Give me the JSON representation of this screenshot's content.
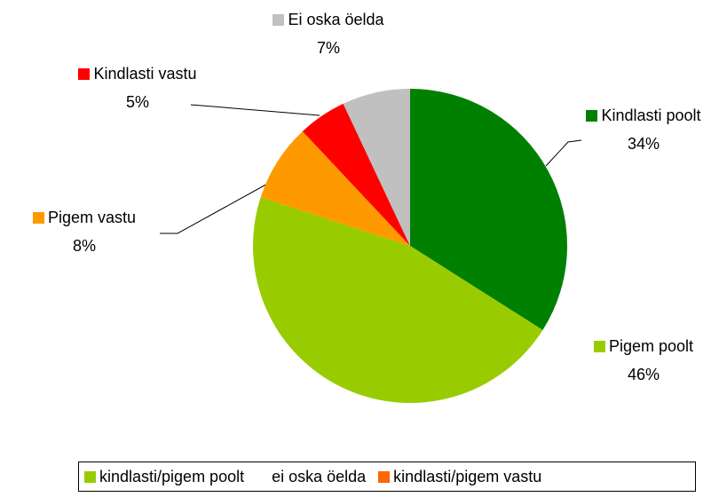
{
  "chart_data": {
    "type": "pie",
    "categories": [
      "Kindlasti poolt",
      "Pigem poolt",
      "Pigem vastu",
      "Kindlasti vastu",
      "Ei oska öelda"
    ],
    "values": [
      34,
      46,
      8,
      5,
      7
    ],
    "value_labels": [
      "34%",
      "46%",
      "8%",
      "5%",
      "7%"
    ],
    "colors": [
      "#008000",
      "#99cc00",
      "#ff9900",
      "#ff0000",
      "#c0c0c0"
    ],
    "legend": {
      "position": "bottom",
      "entries": [
        {
          "name": "kindlasti/pigem poolt",
          "color": "#99cc00"
        },
        {
          "name": "ei oska öelda",
          "color": "#ffffff"
        },
        {
          "name": "kindlasti/pigem vastu",
          "color": "#ff6600"
        }
      ]
    }
  }
}
